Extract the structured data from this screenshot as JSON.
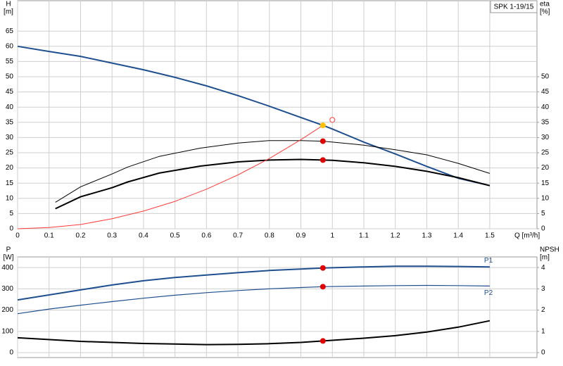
{
  "chart_data": [
    {
      "type": "line",
      "title": "SPK 1-19/15",
      "ylabel": [
        "H",
        "[m]"
      ],
      "y2label": [
        "eta",
        "[%]"
      ],
      "xlabel": "Q [m³/h]",
      "xlim": [
        0,
        1.65
      ],
      "xticks": [
        0,
        0.1,
        0.2,
        0.3,
        0.4,
        0.5,
        0.6,
        0.7,
        0.8,
        0.9,
        1,
        1.1,
        1.2,
        1.3,
        1.4,
        1.5
      ],
      "ylim": [
        0,
        75
      ],
      "yticks": [
        0,
        5,
        10,
        15,
        20,
        25,
        30,
        35,
        40,
        45,
        50,
        55,
        60,
        65
      ],
      "y2lim": [
        0,
        75
      ],
      "y2ticks": [
        0,
        5,
        10,
        15,
        20,
        25,
        30,
        35,
        40,
        45,
        50
      ],
      "grid": true,
      "series": [
        {
          "color": "#1f4f8f",
          "width": 2,
          "x": [
            0,
            0.1,
            0.2,
            0.3,
            0.4,
            0.5,
            0.6,
            0.7,
            0.8,
            0.9,
            0.97,
            1.0,
            1.1,
            1.2,
            1.3,
            1.4,
            1.5
          ],
          "values": [
            60,
            58.3,
            56.7,
            54.5,
            52.3,
            49.8,
            47,
            43.8,
            40.3,
            36.6,
            34,
            32.8,
            28.5,
            24.6,
            20.5,
            16.6,
            14.2
          ]
        },
        {
          "color": "#000000",
          "width": 1,
          "axis": "y2",
          "x": [
            0.12,
            0.2,
            0.3,
            0.35,
            0.45,
            0.58,
            0.7,
            0.8,
            0.9,
            0.97,
            1.0,
            1.1,
            1.2,
            1.3,
            1.4,
            1.5
          ],
          "values": [
            8.7,
            13.8,
            18,
            20.3,
            23.8,
            26.5,
            28.2,
            29,
            29,
            28.8,
            28.5,
            27.5,
            26,
            24.3,
            21.5,
            18.2
          ]
        },
        {
          "color": "#000000",
          "width": 2,
          "axis": "y2",
          "x": [
            0.12,
            0.2,
            0.3,
            0.35,
            0.45,
            0.58,
            0.7,
            0.8,
            0.9,
            0.97,
            1.0,
            1.1,
            1.2,
            1.3,
            1.4,
            1.5
          ],
          "values": [
            6.6,
            10.5,
            13.5,
            15.4,
            18.3,
            20.6,
            22,
            22.6,
            22.8,
            22.6,
            22.5,
            21.7,
            20.5,
            18.9,
            16.8,
            14.2
          ]
        },
        {
          "color": "#ff3b3b",
          "width": 1,
          "x": [
            0,
            0.1,
            0.2,
            0.3,
            0.4,
            0.5,
            0.6,
            0.7,
            0.8,
            0.9,
            0.97
          ],
          "values": [
            0,
            0.4,
            1.4,
            3.3,
            5.8,
            9,
            13,
            17.7,
            23.1,
            29.3,
            34
          ]
        }
      ],
      "markers": [
        {
          "x": 0.97,
          "y": 34,
          "color": "#ffc000",
          "filled": true
        },
        {
          "x": 1.0,
          "y": 35.8,
          "color": "#ff3b3b",
          "filled": false
        },
        {
          "x": 0.97,
          "y": 28.8,
          "color": "#e00000",
          "filled": true
        },
        {
          "x": 0.97,
          "y": 22.6,
          "color": "#e00000",
          "filled": true
        }
      ]
    },
    {
      "type": "line",
      "ylabel": [
        "P",
        "[W]"
      ],
      "y2label": [
        "NPSH",
        "[m]"
      ],
      "xlim": [
        0,
        1.65
      ],
      "ylim": [
        -23,
        450
      ],
      "yticks": [
        0,
        100,
        200,
        300,
        400
      ],
      "y2lim": [
        -0.23,
        4.5
      ],
      "y2ticks": [
        0,
        1,
        2,
        3,
        4
      ],
      "grid": true,
      "series": [
        {
          "name": "P1",
          "color": "#1f4f8f",
          "width": 2,
          "x": [
            0,
            0.2,
            0.3,
            0.4,
            0.5,
            0.6,
            0.7,
            0.8,
            0.9,
            0.97,
            1.1,
            1.2,
            1.3,
            1.4,
            1.5
          ],
          "values": [
            248,
            295,
            318,
            338,
            353,
            365,
            376,
            386,
            393,
            398,
            403,
            406,
            406,
            405,
            403
          ]
        },
        {
          "name": "P2",
          "color": "#1f4f8f",
          "width": 1.2,
          "x": [
            0,
            0.1,
            0.2,
            0.3,
            0.4,
            0.5,
            0.6,
            0.7,
            0.8,
            0.9,
            0.97,
            1.1,
            1.2,
            1.3,
            1.4,
            1.5
          ],
          "values": [
            183,
            205,
            223,
            240,
            256,
            270,
            282,
            292,
            300,
            306,
            310,
            313,
            315,
            316,
            315,
            313
          ]
        },
        {
          "color": "#000000",
          "width": 2,
          "axis": "y2",
          "x": [
            0,
            0.2,
            0.4,
            0.6,
            0.7,
            0.8,
            0.9,
            0.97,
            1.1,
            1.2,
            1.3,
            1.4,
            1.5
          ],
          "values": [
            0.7,
            0.53,
            0.43,
            0.38,
            0.39,
            0.42,
            0.48,
            0.55,
            0.68,
            0.8,
            0.97,
            1.2,
            1.5
          ]
        }
      ],
      "markers": [
        {
          "x": 0.97,
          "y": 398,
          "color": "#e00000",
          "filled": true
        },
        {
          "x": 0.97,
          "y": 310,
          "color": "#e00000",
          "filled": true
        },
        {
          "x": 0.97,
          "y": 0.55,
          "color": "#e00000",
          "filled": true,
          "axis": "y2"
        }
      ]
    }
  ]
}
